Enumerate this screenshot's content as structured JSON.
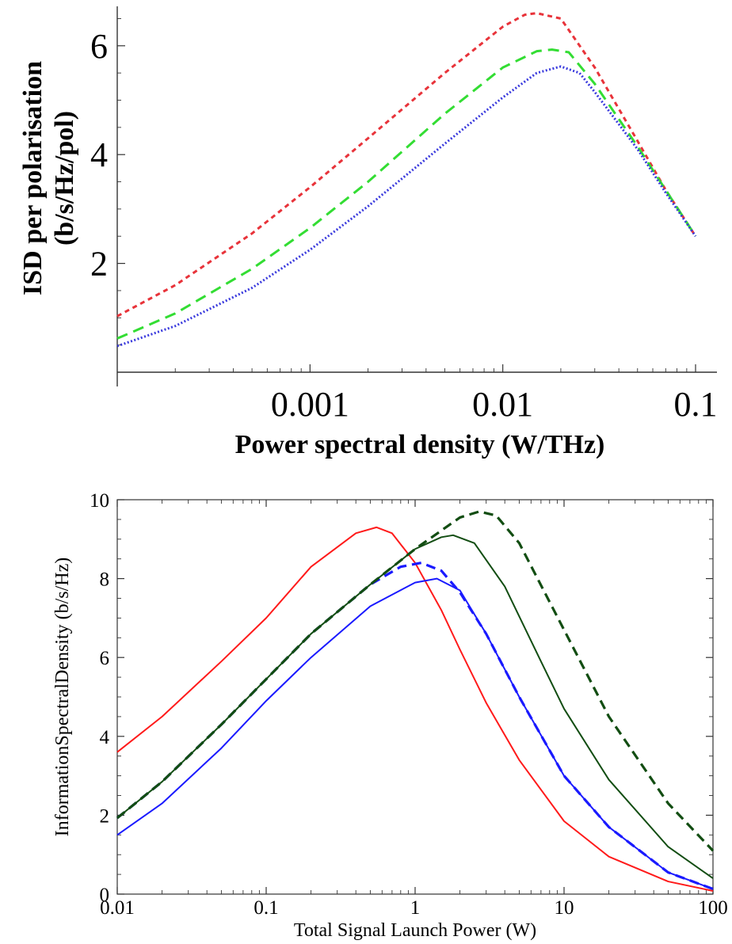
{
  "chart_data": [
    {
      "type": "line",
      "title": "",
      "xlabel": "Power spectral density (W/THz)",
      "ylabel_line1": "ISD per polarisation",
      "ylabel_line2": "(b/s/Hz/pol)",
      "xscale": "log",
      "xlim": [
        0.0001,
        0.11
      ],
      "ylim": [
        0,
        6.8
      ],
      "x_ticks": [
        {
          "value": 0.001,
          "label": "0.001"
        },
        {
          "value": 0.01,
          "label": "0.01"
        },
        {
          "value": 0.1,
          "label": "0.1"
        }
      ],
      "y_ticks": [
        {
          "value": 2,
          "label": "2"
        },
        {
          "value": 4,
          "label": "4"
        },
        {
          "value": 6,
          "label": "6"
        }
      ],
      "grid": false,
      "series": [
        {
          "color": "#e8333a",
          "style": "dashed",
          "dash": "6,5",
          "x": [
            0.0001,
            0.0002,
            0.0005,
            0.001,
            0.002,
            0.005,
            0.01,
            0.013,
            0.015,
            0.02,
            0.03,
            0.05,
            0.07,
            0.1
          ],
          "y": [
            1.03,
            1.6,
            2.55,
            3.4,
            4.3,
            5.5,
            6.35,
            6.57,
            6.6,
            6.5,
            5.6,
            4.25,
            3.35,
            2.5
          ]
        },
        {
          "color": "#33dd33",
          "style": "dashed",
          "dash": "14,8",
          "x": [
            0.0001,
            0.0002,
            0.0005,
            0.001,
            0.002,
            0.005,
            0.01,
            0.015,
            0.018,
            0.022,
            0.03,
            0.05,
            0.07,
            0.1
          ],
          "y": [
            0.62,
            1.08,
            1.9,
            2.65,
            3.5,
            4.75,
            5.6,
            5.9,
            5.93,
            5.88,
            5.3,
            4.15,
            3.35,
            2.5
          ]
        },
        {
          "color": "#3a3add",
          "style": "dotted",
          "dash": "2,2.5",
          "x": [
            0.0001,
            0.0002,
            0.0005,
            0.001,
            0.002,
            0.005,
            0.01,
            0.015,
            0.02,
            0.025,
            0.03,
            0.05,
            0.07,
            0.1
          ],
          "y": [
            0.48,
            0.85,
            1.55,
            2.25,
            3.05,
            4.2,
            5.05,
            5.5,
            5.62,
            5.5,
            5.15,
            4.1,
            3.3,
            2.5
          ]
        }
      ]
    },
    {
      "type": "line",
      "title": "",
      "xlabel": "Total Signal Launch Power (W)",
      "ylabel": "InformationSpectralDensity (b/s/Hz)",
      "xscale": "log",
      "xlim": [
        0.01,
        100
      ],
      "ylim": [
        0,
        10
      ],
      "x_ticks": [
        {
          "value": 0.01,
          "label": "0.01"
        },
        {
          "value": 0.1,
          "label": "0.1"
        },
        {
          "value": 1,
          "label": "1"
        },
        {
          "value": 10,
          "label": "10"
        },
        {
          "value": 100,
          "label": "100"
        }
      ],
      "y_ticks": [
        {
          "value": 0,
          "label": "0"
        },
        {
          "value": 2,
          "label": "2"
        },
        {
          "value": 4,
          "label": "4"
        },
        {
          "value": 6,
          "label": "6"
        },
        {
          "value": 8,
          "label": "8"
        },
        {
          "value": 10,
          "label": "10"
        }
      ],
      "grid": false,
      "series": [
        {
          "color": "#ff1a1a",
          "style": "solid",
          "x": [
            0.01,
            0.02,
            0.05,
            0.1,
            0.2,
            0.4,
            0.55,
            0.7,
            1,
            1.5,
            2,
            3,
            5,
            10,
            20,
            50,
            100
          ],
          "y": [
            3.6,
            4.5,
            5.9,
            7.0,
            8.3,
            9.15,
            9.3,
            9.15,
            8.4,
            7.2,
            6.2,
            4.85,
            3.4,
            1.85,
            0.95,
            0.32,
            0.08
          ]
        },
        {
          "color": "#1a1aff",
          "style": "solid",
          "x": [
            0.01,
            0.02,
            0.05,
            0.1,
            0.2,
            0.5,
            1,
            1.4,
            2,
            3,
            5,
            10,
            20,
            50,
            100
          ],
          "y": [
            1.5,
            2.3,
            3.7,
            4.9,
            6.0,
            7.3,
            7.9,
            8.0,
            7.7,
            6.6,
            5.0,
            3.0,
            1.7,
            0.55,
            0.13
          ]
        },
        {
          "color": "#1a1aff",
          "style": "dashed",
          "dash": "12,7",
          "x": [
            0.01,
            0.02,
            0.05,
            0.1,
            0.2,
            0.5,
            0.8,
            1.1,
            1.5,
            2,
            3,
            5,
            10,
            20,
            50,
            100
          ],
          "y": [
            1.93,
            2.85,
            4.3,
            5.45,
            6.6,
            7.85,
            8.3,
            8.4,
            8.2,
            7.65,
            6.6,
            5.0,
            3.0,
            1.7,
            0.55,
            0.13
          ]
        },
        {
          "color": "#124d12",
          "style": "solid",
          "x": [
            0.01,
            0.02,
            0.05,
            0.1,
            0.2,
            0.5,
            1,
            1.5,
            1.8,
            2.5,
            4,
            7,
            10,
            20,
            50,
            100
          ],
          "y": [
            1.93,
            2.85,
            4.3,
            5.45,
            6.6,
            7.85,
            8.75,
            9.05,
            9.1,
            8.9,
            7.8,
            5.9,
            4.7,
            2.9,
            1.2,
            0.4
          ]
        },
        {
          "color": "#124d12",
          "style": "dashed",
          "dash": "12,7",
          "x": [
            0.01,
            0.02,
            0.05,
            0.1,
            0.2,
            0.5,
            1,
            2,
            2.7,
            3.5,
            5,
            10,
            20,
            50,
            100
          ],
          "y": [
            1.93,
            2.85,
            4.3,
            5.45,
            6.6,
            7.85,
            8.75,
            9.55,
            9.7,
            9.6,
            8.9,
            6.7,
            4.5,
            2.3,
            1.1
          ]
        }
      ]
    }
  ]
}
